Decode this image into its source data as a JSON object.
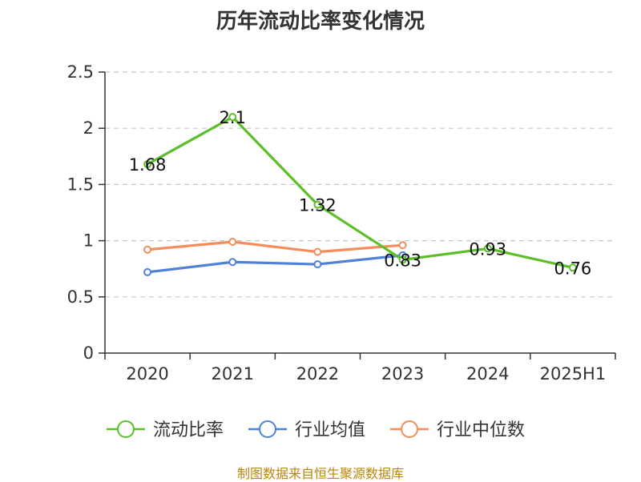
{
  "title": "历年流动比率变化情况",
  "source": "制图数据来自恒生聚源数据库",
  "chart_data": {
    "type": "line",
    "title": "历年流动比率变化情况",
    "categories": [
      "2020",
      "2021",
      "2022",
      "2023",
      "2024",
      "2025H1"
    ],
    "ylim": [
      0,
      2.5
    ],
    "yticks": [
      "0",
      "0.5",
      "1",
      "1.5",
      "2",
      "2.5"
    ],
    "grid": true,
    "legend_position": "bottom",
    "series": [
      {
        "name": "流动比率",
        "color": "#5cbf2a",
        "labels": true,
        "values": [
          1.68,
          2.1,
          1.32,
          0.83,
          0.93,
          0.76
        ],
        "value_labels": [
          "1.68",
          "2.1",
          "1.32",
          "0.83",
          "0.93",
          "0.76"
        ]
      },
      {
        "name": "行业均值",
        "color": "#4f81d9",
        "labels": false,
        "values": [
          0.72,
          0.81,
          0.79,
          0.87,
          null,
          null
        ]
      },
      {
        "name": "行业中位数",
        "color": "#f58d5a",
        "labels": false,
        "values": [
          0.92,
          0.99,
          0.9,
          0.96,
          null,
          null
        ]
      }
    ]
  }
}
